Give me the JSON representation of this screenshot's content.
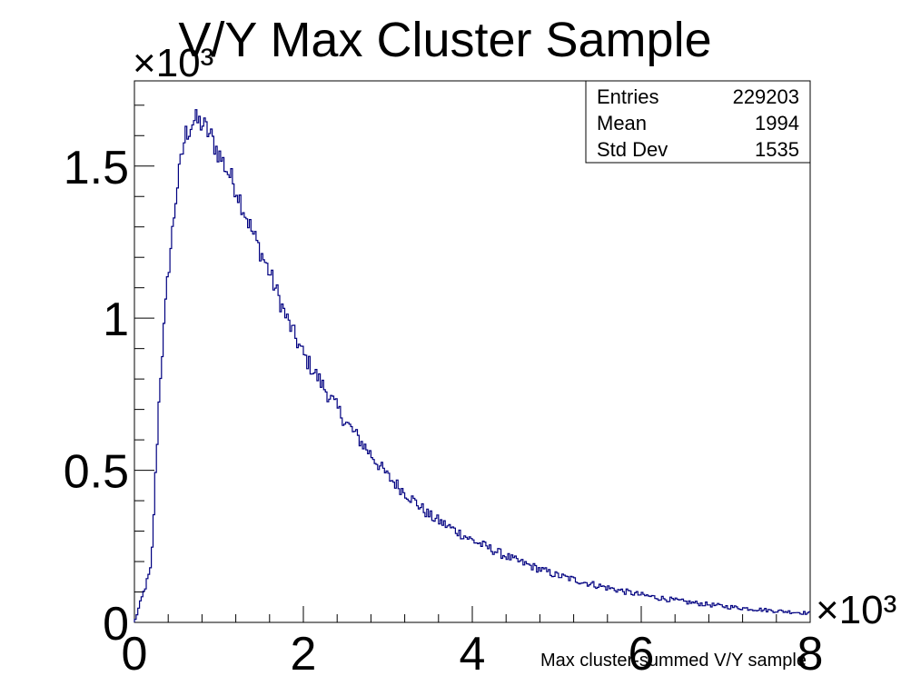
{
  "chart_data": {
    "type": "histogram",
    "title": "V/Y Max Cluster Sample",
    "xlabel": "Max cluster-summed V/Y sample",
    "ylabel": "",
    "x_multiplier": "×10³",
    "y_multiplier": "×10³",
    "xlim": [
      0,
      8000
    ],
    "ylim": [
      0,
      1780
    ],
    "x_ticks": [
      "0",
      "2",
      "4",
      "6",
      "8"
    ],
    "y_ticks": [
      "0",
      "0.5",
      "1",
      "1.5"
    ],
    "line_color": "#000080",
    "grid": false,
    "bin_width": 20,
    "stats": {
      "rows": [
        {
          "label": "Entries",
          "value": "229203"
        },
        {
          "label": "Mean",
          "value": "1994"
        },
        {
          "label": "Std Dev",
          "value": "1535"
        }
      ]
    },
    "series": [
      {
        "x": [
          0,
          200,
          300,
          400,
          500,
          600,
          700,
          800,
          900,
          1000,
          1200,
          1400,
          1600,
          1800,
          2000,
          2500,
          3000,
          3500,
          4000,
          4500,
          5000,
          5500,
          6000,
          6500,
          7000,
          7500,
          8000
        ],
        "values": [
          0,
          180,
          780,
          1150,
          1420,
          1600,
          1650,
          1640,
          1600,
          1540,
          1430,
          1280,
          1150,
          1000,
          880,
          660,
          480,
          350,
          270,
          205,
          155,
          120,
          90,
          68,
          52,
          40,
          30
        ]
      }
    ]
  }
}
